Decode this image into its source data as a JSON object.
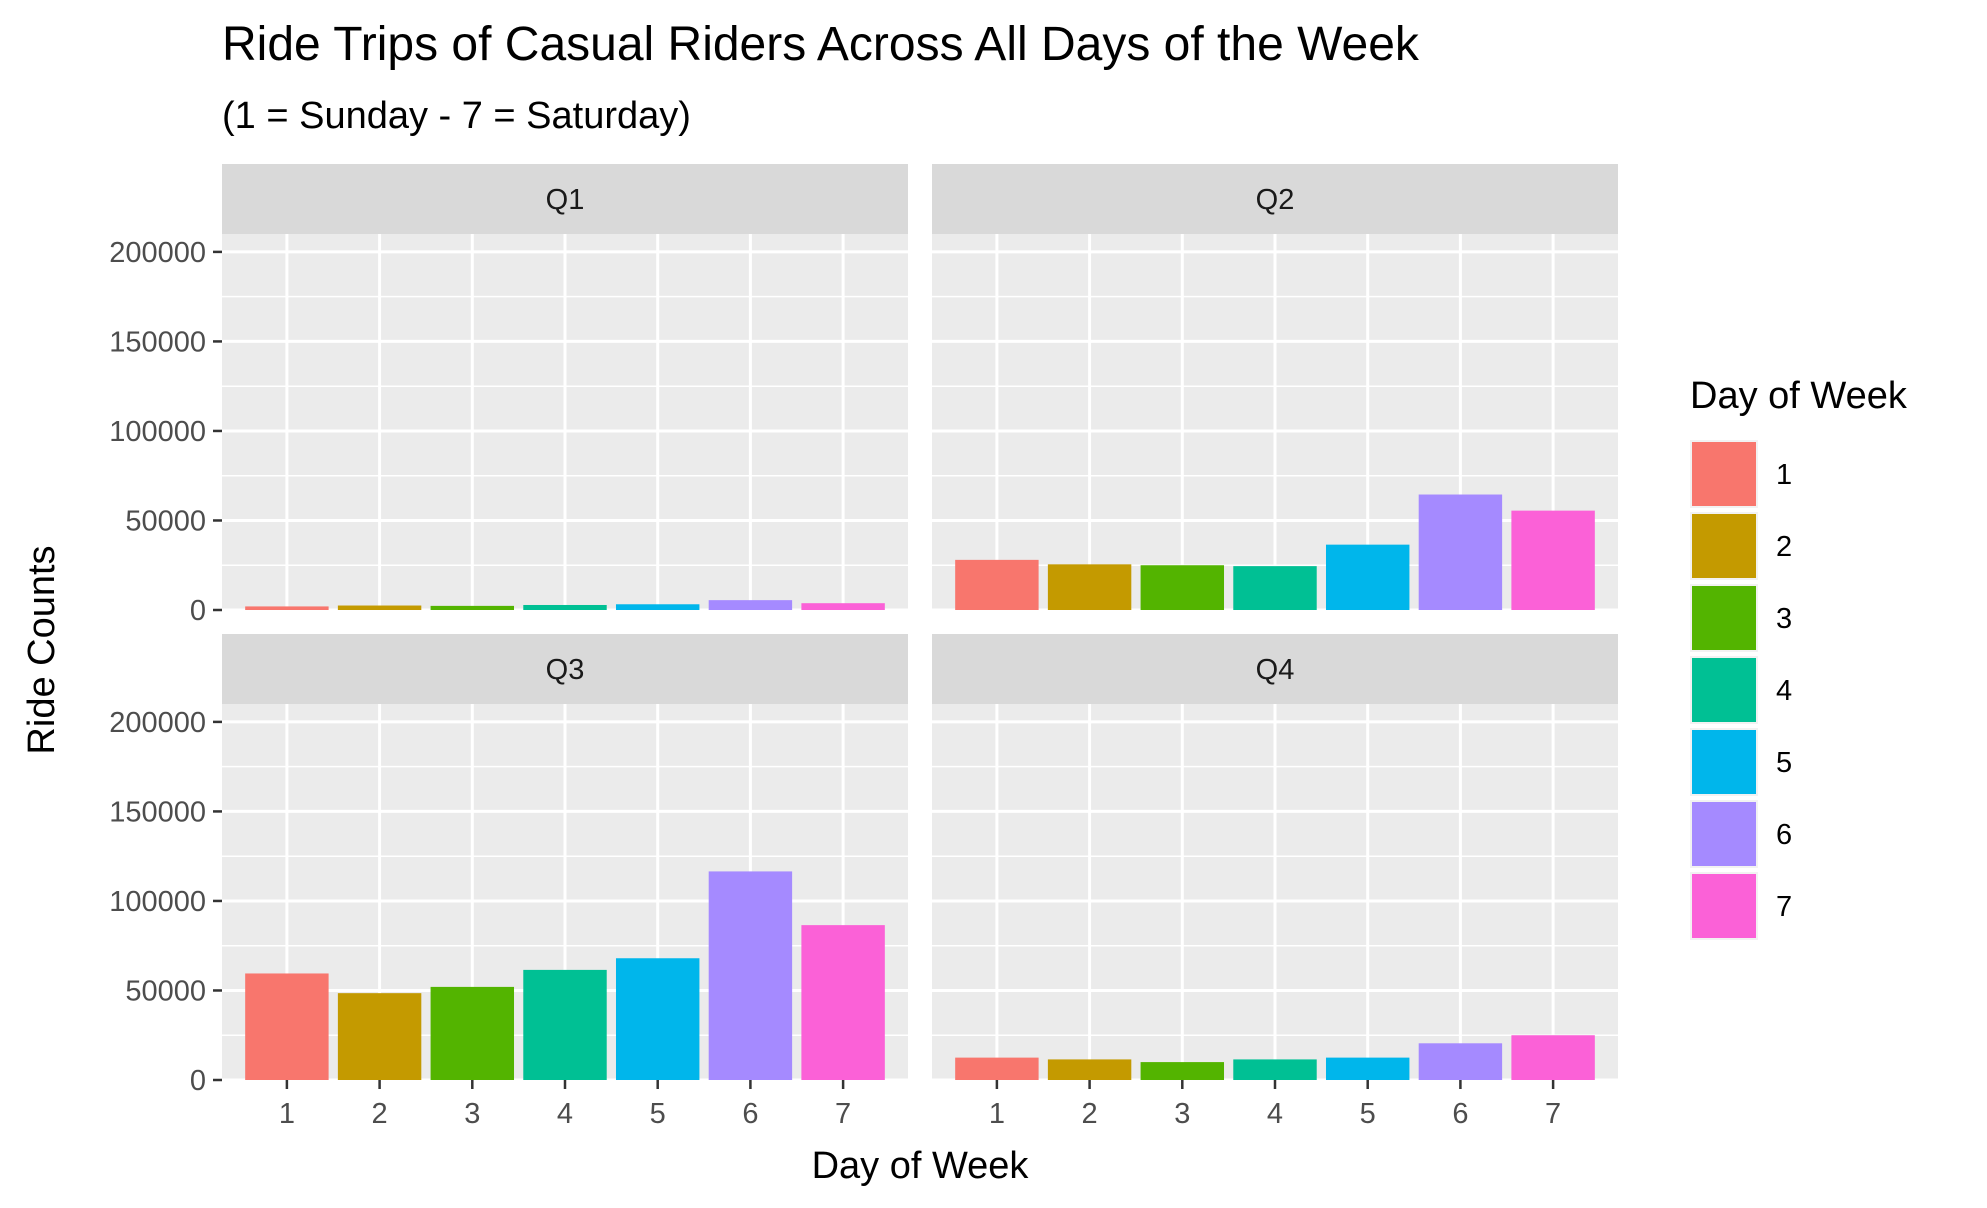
{
  "chart_data": {
    "type": "bar",
    "title": "Ride Trips of Casual Riders Across All Days of the Week",
    "subtitle": "(1 = Sunday - 7 = Saturday)",
    "xlabel": "Day of Week",
    "ylabel": "Ride Counts",
    "categories": [
      "1",
      "2",
      "3",
      "4",
      "5",
      "6",
      "7"
    ],
    "ylim": [
      0,
      210000
    ],
    "yticks": [
      0,
      50000,
      100000,
      150000,
      200000
    ],
    "ytick_labels": [
      "0",
      "50000",
      "100000",
      "150000",
      "200000"
    ],
    "grid": true,
    "legend": {
      "title": "Day of Week",
      "placement": "right",
      "labels": [
        "1",
        "2",
        "3",
        "4",
        "5",
        "6",
        "7"
      ]
    },
    "colors": [
      "#F8766D",
      "#C49A00",
      "#53B400",
      "#00C094",
      "#00B6EB",
      "#A58AFF",
      "#FB61D7"
    ],
    "panel_background": "#EBEBEB",
    "strip_background": "#D9D9D9",
    "panels": [
      {
        "label": "Q1",
        "values": [
          2000,
          2500,
          2300,
          2800,
          3200,
          5500,
          3800
        ]
      },
      {
        "label": "Q2",
        "values": [
          28000,
          25500,
          25000,
          24500,
          36500,
          64500,
          55500
        ]
      },
      {
        "label": "Q3",
        "values": [
          59500,
          48500,
          52000,
          61500,
          68000,
          116500,
          86500
        ]
      },
      {
        "label": "Q4",
        "values": [
          12500,
          11500,
          10000,
          11500,
          12500,
          20500,
          25000
        ]
      }
    ]
  }
}
